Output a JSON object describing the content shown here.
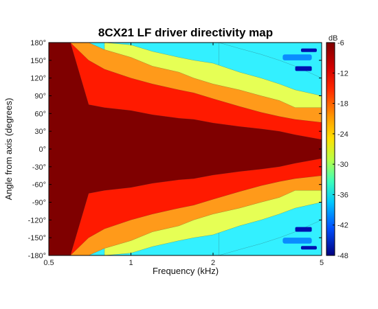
{
  "chart_data": {
    "type": "heatmap",
    "title": "8CX21 LF driver directivity map",
    "xlabel": "Frequency (kHz)",
    "ylabel": "Angle from axis (degrees)",
    "x_scale": "log",
    "x_range": [
      0.5,
      5
    ],
    "y_range": [
      -180,
      180
    ],
    "x_tick_labels": [
      "0.5",
      "1",
      "2",
      "5"
    ],
    "x_tick_values": [
      0.5,
      1,
      2,
      5
    ],
    "y_tick_labels": [
      "180°",
      "150°",
      "120°",
      "90°",
      "60°",
      "30°",
      "0°",
      "-30°",
      "-60°",
      "-90°",
      "-120°",
      "-150°",
      "-180°"
    ],
    "y_tick_values": [
      180,
      150,
      120,
      90,
      60,
      30,
      0,
      -30,
      -60,
      -90,
      -120,
      -150,
      -180
    ],
    "colorbar": {
      "unit": "dB",
      "min": -48,
      "max": -6,
      "tick_labels": [
        "-6",
        "-12",
        "-18",
        "-24",
        "-30",
        "-36",
        "-42",
        "-48"
      ],
      "tick_values": [
        -6,
        -12,
        -18,
        -24,
        -30,
        -36,
        -42,
        -48
      ]
    },
    "contour_levels_db": [
      -6,
      -12,
      -18,
      -24,
      -30,
      -36,
      -42
    ],
    "level_colors": {
      "-6": "#7f0000",
      "-12": "#ff1a00",
      "-18": "#ff9a1a",
      "-24": "#e6ff55",
      "-30": "#33f0ff",
      "-36": "#0a8cff",
      "-42": "#0010b0"
    },
    "series": [
      {
        "name": "-6 dB",
        "x": [
          0.5,
          0.6,
          0.7,
          0.8,
          1.0,
          1.2,
          1.5,
          1.7,
          2.0,
          2.5,
          3.0,
          3.5,
          4.0,
          5.0
        ],
        "y": [
          180,
          180,
          75,
          70,
          65,
          58,
          52,
          50,
          44,
          38,
          34,
          30,
          24,
          16
        ]
      },
      {
        "name": "-12 dB",
        "x": [
          0.5,
          0.6,
          0.7,
          0.8,
          1.0,
          1.2,
          1.5,
          1.7,
          2.0,
          2.5,
          3.0,
          3.5,
          4.0,
          5.0
        ],
        "y": [
          180,
          180,
          150,
          135,
          120,
          110,
          100,
          95,
          85,
          72,
          62,
          55,
          50,
          45
        ]
      },
      {
        "name": "-18 dB",
        "x": [
          0.5,
          0.7,
          0.8,
          1.0,
          1.2,
          1.5,
          1.7,
          2.0,
          2.5,
          3.0,
          3.5,
          4.0,
          5.0
        ],
        "y": [
          180,
          180,
          168,
          155,
          140,
          130,
          120,
          110,
          100,
          90,
          82,
          70,
          70
        ]
      },
      {
        "name": "-24 dB",
        "x": [
          0.8,
          1.0,
          1.2,
          1.5,
          1.7,
          2.0,
          2.5,
          3.0,
          3.5,
          4.0,
          5.0
        ],
        "y": [
          180,
          176,
          165,
          155,
          150,
          145,
          130,
          120,
          110,
          100,
          90
        ]
      },
      {
        "name": "-30 dB",
        "x": [
          2.1,
          2.5,
          3.0,
          3.5,
          4.0,
          5.0
        ],
        "y": [
          180,
          170,
          160,
          150,
          140,
          120
        ]
      }
    ]
  }
}
